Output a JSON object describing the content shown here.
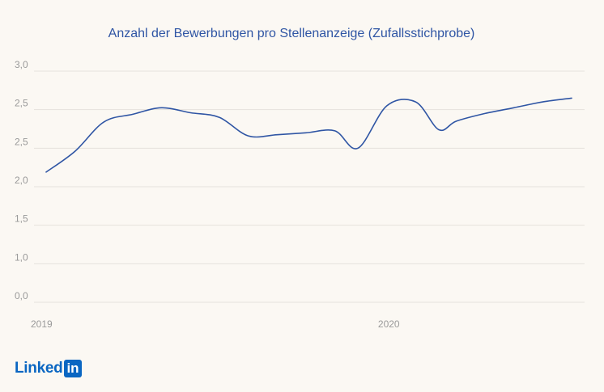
{
  "chart_data": {
    "type": "line",
    "title": "Anzahl der Bewerbungen pro Stellenanzeige (Zufallsstichprobe)",
    "xlabel": "",
    "ylabel": "",
    "y_tick_labels": [
      "0,0",
      "1,0",
      "1,5",
      "2,0",
      "2,5",
      "2,5",
      "3,0"
    ],
    "x_tick_labels": [
      {
        "label": "2019",
        "t": 0
      },
      {
        "label": "2020",
        "t": 12
      }
    ],
    "ylim": [
      0,
      6
    ],
    "grid": true,
    "series": [
      {
        "color": "#2f55a4",
        "x": [
          0,
          1,
          2,
          3,
          4,
          5,
          6,
          7,
          8,
          9,
          10,
          10.8,
          11.8,
          12.8,
          13.6,
          14.2,
          15.2,
          16.2,
          17.2,
          18.2
        ],
        "y": [
          3.38,
          3.92,
          4.68,
          4.88,
          5.05,
          4.92,
          4.8,
          4.32,
          4.35,
          4.4,
          4.45,
          4.0,
          5.1,
          5.2,
          4.48,
          4.7,
          4.9,
          5.05,
          5.2,
          5.3
        ]
      }
    ]
  },
  "logo": {
    "text": "Linked",
    "box_text": "in"
  }
}
